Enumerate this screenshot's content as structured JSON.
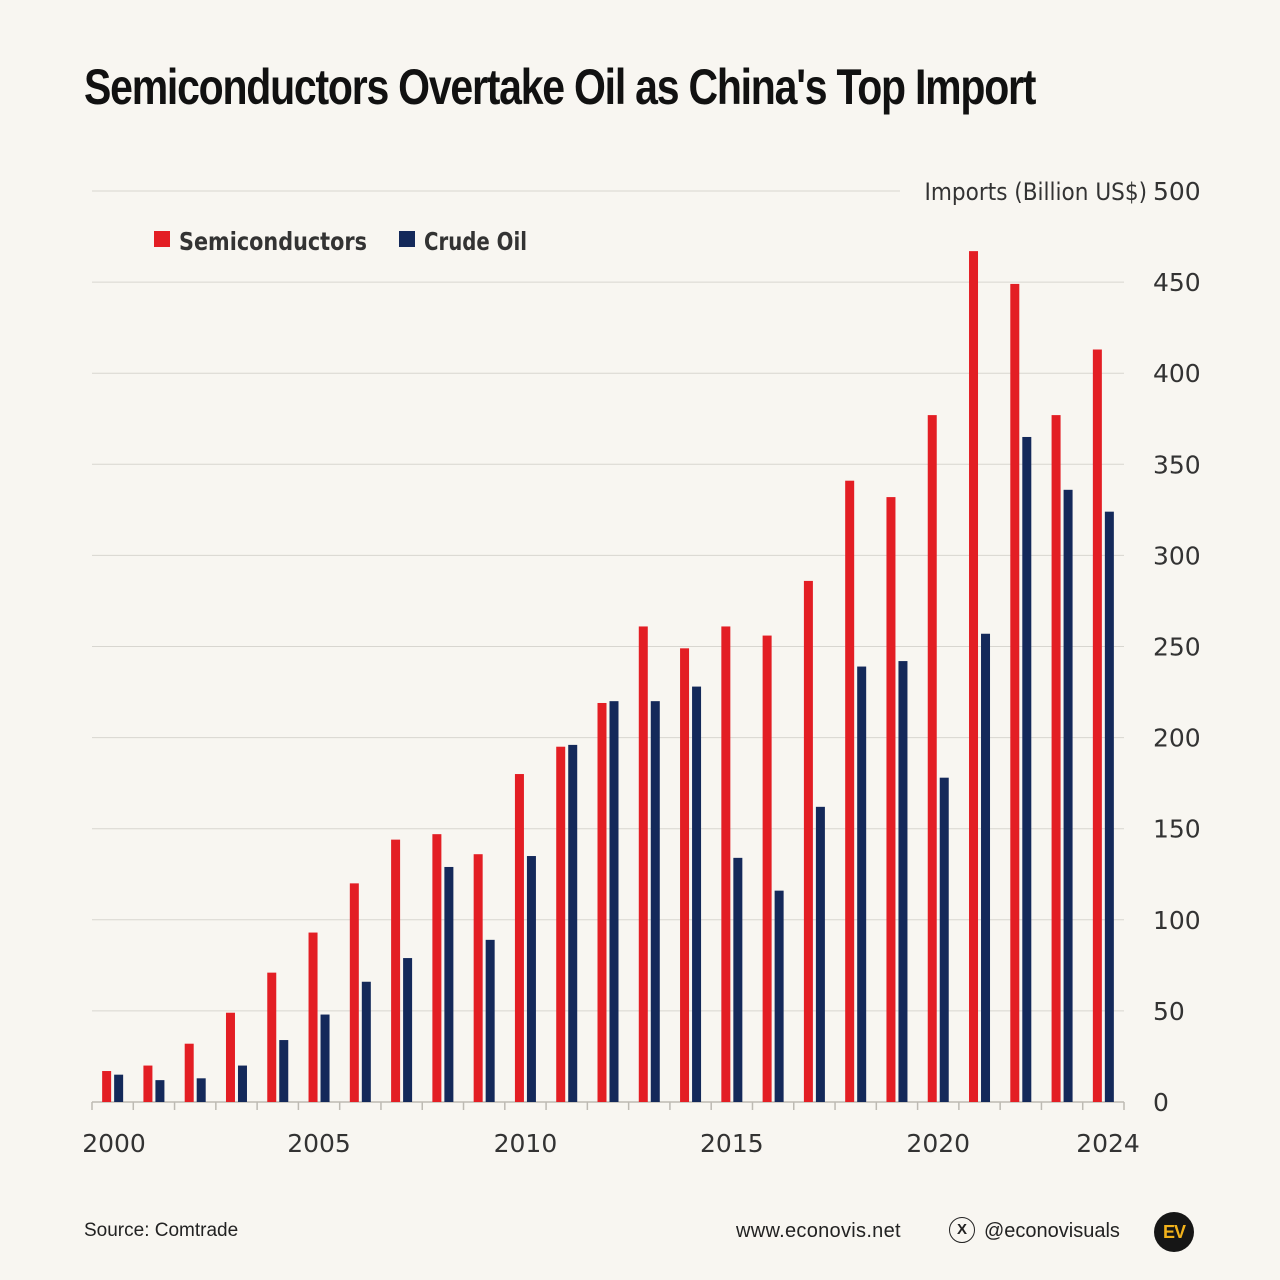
{
  "title": "Semiconductors Overtake Oil as China's Top Import",
  "chart_data": {
    "type": "bar",
    "title": "Semiconductors Overtake Oil as China's Top Import",
    "xlabel": "",
    "ylabel": "Imports (Billion US$)",
    "ylim": [
      0,
      500
    ],
    "yticks": [
      0,
      50,
      100,
      150,
      200,
      250,
      300,
      350,
      400,
      450,
      500
    ],
    "xtick_labels": [
      "2000",
      "2005",
      "2010",
      "2015",
      "2020",
      "2024"
    ],
    "categories": [
      "2000",
      "2001",
      "2002",
      "2003",
      "2004",
      "2005",
      "2006",
      "2007",
      "2008",
      "2009",
      "2010",
      "2011",
      "2012",
      "2013",
      "2014",
      "2015",
      "2016",
      "2017",
      "2018",
      "2019",
      "2020",
      "2021",
      "2022",
      "2023",
      "2024"
    ],
    "series": [
      {
        "name": "Semiconductors",
        "color": "#e31e24",
        "values": [
          17,
          20,
          32,
          49,
          71,
          93,
          120,
          144,
          147,
          136,
          180,
          195,
          219,
          261,
          249,
          261,
          256,
          286,
          341,
          332,
          377,
          467,
          449,
          377,
          413
        ]
      },
      {
        "name": "Crude Oil",
        "color": "#14295a",
        "values": [
          15,
          12,
          13,
          20,
          34,
          48,
          66,
          79,
          129,
          89,
          135,
          196,
          220,
          220,
          228,
          134,
          116,
          162,
          239,
          242,
          178,
          257,
          365,
          336,
          324
        ]
      }
    ],
    "grid": true,
    "legend": "top-left"
  },
  "footer": {
    "source": "Source: Comtrade",
    "website": "www.econovis.net",
    "handle": "@econovisuals",
    "x_icon": "x-logo-icon",
    "logo_text": "EV"
  }
}
